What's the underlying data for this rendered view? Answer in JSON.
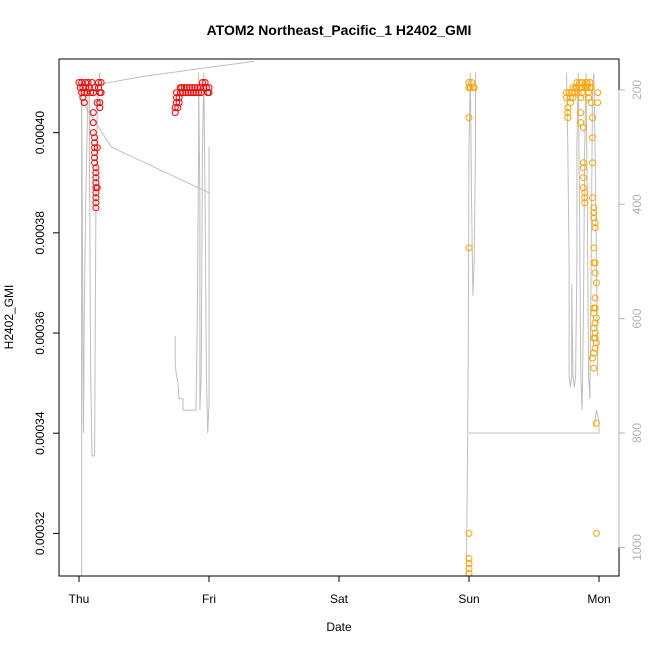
{
  "chart_data": {
    "type": "scatter",
    "title": "ATOM2 Northeast_Pacific_1 H2402_GMI",
    "xlabel": "Date",
    "ylabel": "H2402_GMI",
    "x_ticks": [
      "Thu",
      "Fri",
      "Sat",
      "Sun",
      "Mon"
    ],
    "x_range_days": [
      -0.1,
      4.16
    ],
    "y_ticks": [
      "0.00032",
      "0.00034",
      "0.00036",
      "0.00038",
      "0.00040"
    ],
    "y_tick_values": [
      0.00032,
      0.00034,
      0.00036,
      0.00038,
      0.0004
    ],
    "ylim": [
      0.0003115,
      0.0004147
    ],
    "y2_ticks": [
      "200",
      "400",
      "600",
      "800",
      "1000"
    ],
    "y2_tick_values": [
      200,
      400,
      600,
      800,
      1000
    ],
    "y2lim": [
      1050,
      146
    ],
    "colors": {
      "series_red": "#ff0000",
      "series_orange": "#ffa500",
      "pressure_line": "#bebebe",
      "axis": "#000000",
      "right_axis": "#b3b3b3"
    },
    "series": [
      {
        "color": "#ff0000",
        "points": [
          [
            0.0,
            0.00041
          ],
          [
            0.01,
            0.000409
          ],
          [
            0.02,
            0.00041
          ],
          [
            0.02,
            0.000408
          ],
          [
            0.03,
            0.000407
          ],
          [
            0.03,
            0.000409
          ],
          [
            0.04,
            0.000406
          ],
          [
            0.04,
            0.000408
          ],
          [
            0.05,
            0.00041
          ],
          [
            0.05,
            0.000409
          ],
          [
            0.06,
            0.000408
          ],
          [
            0.07,
            0.00041
          ],
          [
            0.08,
            0.000409
          ],
          [
            0.09,
            0.000408
          ],
          [
            0.1,
            0.00041
          ],
          [
            0.11,
            0.000408
          ],
          [
            0.12,
            0.000409
          ],
          [
            0.11,
            0.000404
          ],
          [
            0.11,
            0.000402
          ],
          [
            0.11,
            0.0004
          ],
          [
            0.12,
            0.000399
          ],
          [
            0.12,
            0.000398
          ],
          [
            0.12,
            0.000397
          ],
          [
            0.12,
            0.000396
          ],
          [
            0.12,
            0.000395
          ],
          [
            0.12,
            0.000394
          ],
          [
            0.13,
            0.000393
          ],
          [
            0.13,
            0.000392
          ],
          [
            0.13,
            0.000391
          ],
          [
            0.13,
            0.00039
          ],
          [
            0.13,
            0.000389
          ],
          [
            0.13,
            0.000388
          ],
          [
            0.13,
            0.000387
          ],
          [
            0.13,
            0.000386
          ],
          [
            0.13,
            0.000385
          ],
          [
            0.14,
            0.000397
          ],
          [
            0.14,
            0.000389
          ],
          [
            0.14,
            0.000406
          ],
          [
            0.15,
            0.00041
          ],
          [
            0.15,
            0.000409
          ],
          [
            0.16,
            0.000408
          ],
          [
            0.16,
            0.000405
          ],
          [
            0.16,
            0.000406
          ],
          [
            0.17,
            0.00041
          ],
          [
            0.17,
            0.000408
          ],
          [
            0.74,
            0.000404
          ],
          [
            0.74,
            0.000405
          ],
          [
            0.75,
            0.000406
          ],
          [
            0.75,
            0.000407
          ],
          [
            0.75,
            0.000408
          ],
          [
            0.76,
            0.000405
          ],
          [
            0.77,
            0.000406
          ],
          [
            0.77,
            0.000407
          ],
          [
            0.78,
            0.000408
          ],
          [
            0.78,
            0.000409
          ],
          [
            0.79,
            0.000409
          ],
          [
            0.8,
            0.000408
          ],
          [
            0.81,
            0.000409
          ],
          [
            0.82,
            0.000408
          ],
          [
            0.83,
            0.000409
          ],
          [
            0.84,
            0.000408
          ],
          [
            0.85,
            0.000409
          ],
          [
            0.86,
            0.000408
          ],
          [
            0.87,
            0.000409
          ],
          [
            0.88,
            0.000408
          ],
          [
            0.89,
            0.000409
          ],
          [
            0.9,
            0.000408
          ],
          [
            0.91,
            0.000409
          ],
          [
            0.92,
            0.000408
          ],
          [
            0.93,
            0.000409
          ],
          [
            0.94,
            0.000408
          ],
          [
            0.95,
            0.00041
          ],
          [
            0.96,
            0.000409
          ],
          [
            0.97,
            0.00041
          ],
          [
            0.98,
            0.000409
          ],
          [
            0.99,
            0.000408
          ],
          [
            1.0,
            0.000409
          ],
          [
            1.0,
            0.000408
          ]
        ]
      },
      {
        "color": "#ffa500",
        "points": [
          [
            3.0,
            0.00041
          ],
          [
            3.0,
            0.000409
          ],
          [
            3.0,
            0.000403
          ],
          [
            3.0,
            0.000377
          ],
          [
            3.0,
            0.00032
          ],
          [
            3.0,
            0.000315
          ],
          [
            3.0,
            0.000314
          ],
          [
            3.0,
            0.000313
          ],
          [
            3.0,
            0.000312
          ],
          [
            3.01,
            0.000409
          ],
          [
            3.02,
            0.00041
          ],
          [
            3.03,
            0.000409
          ],
          [
            3.04,
            0.000409
          ],
          [
            3.75,
            0.000408
          ],
          [
            3.75,
            0.000407
          ],
          [
            3.76,
            0.000405
          ],
          [
            3.76,
            0.000404
          ],
          [
            3.76,
            0.000403
          ],
          [
            3.77,
            0.000408
          ],
          [
            3.78,
            0.000407
          ],
          [
            3.78,
            0.000406
          ],
          [
            3.79,
            0.000408
          ],
          [
            3.8,
            0.000409
          ],
          [
            3.8,
            0.000407
          ],
          [
            3.81,
            0.000408
          ],
          [
            3.82,
            0.000409
          ],
          [
            3.83,
            0.00041
          ],
          [
            3.83,
            0.000409
          ],
          [
            3.84,
            0.000408
          ],
          [
            3.85,
            0.00041
          ],
          [
            3.85,
            0.000409
          ],
          [
            3.86,
            0.000407
          ],
          [
            3.86,
            0.000404
          ],
          [
            3.86,
            0.000402
          ],
          [
            3.87,
            0.00041
          ],
          [
            3.87,
            0.000409
          ],
          [
            3.87,
            0.000408
          ],
          [
            3.88,
            0.000401
          ],
          [
            3.88,
            0.000394
          ],
          [
            3.88,
            0.000393
          ],
          [
            3.88,
            0.000391
          ],
          [
            3.88,
            0.000389
          ],
          [
            3.89,
            0.000388
          ],
          [
            3.89,
            0.000387
          ],
          [
            3.89,
            0.000386
          ],
          [
            3.9,
            0.00041
          ],
          [
            3.9,
            0.000409
          ],
          [
            3.91,
            0.00041
          ],
          [
            3.91,
            0.000409
          ],
          [
            3.92,
            0.000408
          ],
          [
            3.92,
            0.000407
          ],
          [
            3.93,
            0.00041
          ],
          [
            3.93,
            0.000409
          ],
          [
            3.94,
            0.000409
          ],
          [
            3.94,
            0.000406
          ],
          [
            3.95,
            0.000403
          ],
          [
            3.95,
            0.000399
          ],
          [
            3.95,
            0.000394
          ],
          [
            3.95,
            0.000387
          ],
          [
            3.96,
            0.000385
          ],
          [
            3.96,
            0.000384
          ],
          [
            3.96,
            0.000383
          ],
          [
            3.97,
            0.000382
          ],
          [
            3.97,
            0.000381
          ],
          [
            3.96,
            0.000377
          ],
          [
            3.96,
            0.000374
          ],
          [
            3.97,
            0.000374
          ],
          [
            3.97,
            0.000372
          ],
          [
            3.98,
            0.00037
          ],
          [
            3.97,
            0.000367
          ],
          [
            3.97,
            0.000365
          ],
          [
            3.96,
            0.000365
          ],
          [
            3.96,
            0.000364
          ],
          [
            3.97,
            0.000362
          ],
          [
            3.96,
            0.000361
          ],
          [
            3.97,
            0.00036
          ],
          [
            3.96,
            0.000359
          ],
          [
            3.97,
            0.000359
          ],
          [
            3.97,
            0.000357
          ],
          [
            3.96,
            0.000356
          ],
          [
            3.95,
            0.000355
          ],
          [
            3.96,
            0.000353
          ],
          [
            3.98,
            0.000358
          ],
          [
            3.98,
            0.000363
          ],
          [
            3.98,
            0.000342
          ],
          [
            3.98,
            0.00032
          ],
          [
            3.99,
            0.000406
          ],
          [
            3.99,
            0.000408
          ]
        ]
      }
    ],
    "pressure_line": {
      "segments": [
        [
          [
            0.02,
            1050
          ],
          [
            0.02,
            180
          ],
          [
            0.025,
            400
          ],
          [
            0.03,
            650
          ],
          [
            0.033,
            780
          ],
          [
            0.035,
            800
          ],
          [
            0.04,
            600
          ],
          [
            0.05,
            420
          ],
          [
            0.06,
            300
          ],
          [
            0.07,
            200
          ],
          [
            0.08,
            180
          ],
          [
            0.08,
            300
          ],
          [
            0.085,
            500
          ],
          [
            0.09,
            700
          ],
          [
            0.1,
            840
          ],
          [
            0.12,
            840
          ],
          [
            0.125,
            600
          ],
          [
            0.13,
            400
          ],
          [
            0.14,
            240
          ],
          [
            0.15,
            190
          ],
          [
            0.16,
            170
          ],
          [
            0.16,
            190
          ],
          [
            0.5,
            176
          ],
          [
            1.35,
            150
          ]
        ],
        [
          [
            0.02,
            220
          ],
          [
            0.25,
            300
          ],
          [
            1.0,
            380
          ]
        ],
        [
          [
            0.74,
            630
          ],
          [
            0.74,
            680
          ],
          [
            0.75,
            700
          ],
          [
            0.76,
            710
          ],
          [
            0.77,
            740
          ],
          [
            0.8,
            740
          ],
          [
            0.8,
            760
          ],
          [
            0.9,
            760
          ],
          [
            0.91,
            600
          ],
          [
            0.92,
            300
          ],
          [
            0.92,
            170
          ],
          [
            0.93,
            400
          ],
          [
            0.93,
            760
          ],
          [
            0.94,
            700
          ],
          [
            0.95,
            300
          ],
          [
            0.96,
            170
          ],
          [
            0.97,
            400
          ],
          [
            0.98,
            700
          ],
          [
            0.99,
            800
          ],
          [
            1.0,
            750
          ],
          [
            1.0,
            300
          ]
        ],
        [
          [
            2.98,
            1050
          ],
          [
            2.99,
            800
          ],
          [
            2.995,
            600
          ],
          [
            3.0,
            300
          ],
          [
            3.01,
            170
          ],
          [
            3.02,
            400
          ],
          [
            3.03,
            560
          ],
          [
            3.04,
            500
          ],
          [
            3.05,
            300
          ],
          [
            3.05,
            170
          ]
        ],
        [
          [
            3.0,
            800
          ],
          [
            4.0,
            800
          ],
          [
            4.0,
            780
          ],
          [
            3.99,
            770
          ],
          [
            3.98,
            760
          ],
          [
            3.97,
            780
          ],
          [
            3.96,
            790
          ]
        ],
        [
          [
            3.75,
            170
          ],
          [
            3.76,
            300
          ],
          [
            3.77,
            500
          ],
          [
            3.77,
            700
          ],
          [
            3.78,
            720
          ],
          [
            3.79,
            700
          ],
          [
            3.79,
            540
          ],
          [
            3.8,
            700
          ],
          [
            3.81,
            720
          ],
          [
            3.82,
            700
          ],
          [
            3.83,
            500
          ],
          [
            3.83,
            300
          ],
          [
            3.84,
            170
          ],
          [
            3.85,
            400
          ],
          [
            3.86,
            700
          ],
          [
            3.87,
            760
          ],
          [
            3.88,
            600
          ],
          [
            3.89,
            300
          ],
          [
            3.9,
            170
          ],
          [
            3.91,
            400
          ],
          [
            3.92,
            700
          ],
          [
            3.93,
            740
          ],
          [
            3.94,
            500
          ],
          [
            3.95,
            200
          ],
          [
            3.96,
            170
          ],
          [
            3.97,
            300
          ],
          [
            3.98,
            500
          ],
          [
            3.99,
            700
          ]
        ]
      ]
    }
  }
}
